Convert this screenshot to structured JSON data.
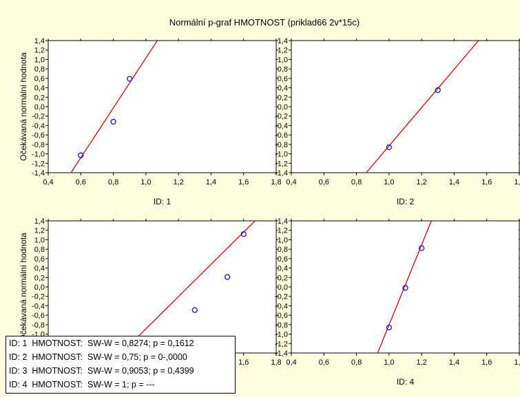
{
  "chart_data": {
    "type": "scatter",
    "title": "Normální p-graf HMOTNOST (priklad66 2v*15c)",
    "ylabel": "Očekávaná normální hodnota",
    "xlim": [
      0.4,
      1.8
    ],
    "ylim": [
      -1.4,
      1.4
    ],
    "x_ticks": [
      "0,4",
      "0,6",
      "0,8",
      "1,0",
      "1,2",
      "1,4",
      "1,6",
      "1,8"
    ],
    "y_ticks": [
      "-1,4",
      "-1,2",
      "-1,0",
      "-0,8",
      "-0,6",
      "-0,4",
      "-0,2",
      "0,0",
      "0,2",
      "0,4",
      "0,6",
      "0,8",
      "1,0",
      "1,2",
      "1,4"
    ],
    "colors": {
      "line": "#e00000",
      "points": "#0000d0",
      "background": "#fffde0",
      "panel": "#ffffff"
    },
    "panels": [
      {
        "label": "ID: 1",
        "points": [
          {
            "x": 0.6,
            "y": -1.03
          },
          {
            "x": 0.8,
            "y": -0.32
          },
          {
            "x": 0.9,
            "y": 0.59
          }
        ],
        "fit_line": [
          {
            "x": 0.54,
            "y": -1.4
          },
          {
            "x": 1.07,
            "y": 1.4
          }
        ]
      },
      {
        "label": "ID: 2",
        "points": [
          {
            "x": 1.0,
            "y": -0.86
          },
          {
            "x": 1.3,
            "y": 0.35
          }
        ],
        "fit_line": [
          {
            "x": 0.86,
            "y": -1.4
          },
          {
            "x": 1.55,
            "y": 1.4
          }
        ]
      },
      {
        "label": "ID: 3",
        "points": [
          {
            "x": 1.3,
            "y": -0.49
          },
          {
            "x": 1.5,
            "y": 0.21
          },
          {
            "x": 1.6,
            "y": 1.12
          }
        ],
        "fit_line": [
          {
            "x": 0.85,
            "y": -1.4
          },
          {
            "x": 1.67,
            "y": 1.4
          }
        ]
      },
      {
        "label": "ID: 4",
        "points": [
          {
            "x": 1.0,
            "y": -0.86
          },
          {
            "x": 1.1,
            "y": -0.02
          },
          {
            "x": 1.2,
            "y": 0.82
          }
        ],
        "fit_line": [
          {
            "x": 0.93,
            "y": -1.4
          },
          {
            "x": 1.26,
            "y": 1.4
          }
        ]
      }
    ],
    "legend": [
      "ID: 1  HMOTNOST:  SW-W = 0,8274; p = 0,1612",
      "ID: 2  HMOTNOST:  SW-W = 0,75; p = 0-,0000",
      "ID: 3  HMOTNOST:  SW-W = 0,9053; p = 0,4399",
      "ID: 4  HMOTNOST:  SW-W = 1; p = ---"
    ]
  }
}
